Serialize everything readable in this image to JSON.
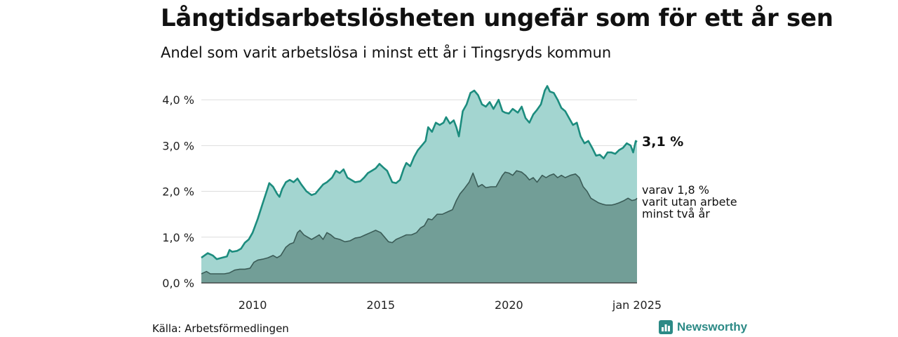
{
  "header": {
    "title": "Långtidsarbetslösheten ungefär som för ett år sen",
    "subtitle": "Andel som varit arbetslösa i minst ett år i Tingsryds kommun"
  },
  "footer": {
    "source": "Källa: Arbetsförmedlingen",
    "brand": "Newsworthy"
  },
  "colors": {
    "long_fill": "#a3d5d0",
    "long_line": "#1c8c7e",
    "two_year_fill": "#729e97",
    "two_year_line": "#3b5c57",
    "grid": "#dddddd",
    "brand": "#2c8a86"
  },
  "chart_data": {
    "type": "area",
    "title": "Långtidsarbetslösheten ungefär som för ett år sen",
    "subtitle": "Andel som varit arbetslösa i minst ett år i Tingsryds kommun",
    "x_ticks": [
      "2010",
      "2015",
      "2020",
      "jan 2025"
    ],
    "x_tick_values": [
      2010,
      2015,
      2020,
      2025
    ],
    "y_ticks": [
      "0,0 %",
      "1,0 %",
      "2,0 %",
      "3,0 %",
      "4,0 %"
    ],
    "ylim": [
      0,
      4.4
    ],
    "xlim": [
      2008.0,
      2025.0
    ],
    "grid": true,
    "series": [
      {
        "end_label": "3,1 %",
        "points": [
          [
            2008.0,
            0.55
          ],
          [
            2008.25,
            0.65
          ],
          [
            2008.45,
            0.6
          ],
          [
            2008.6,
            0.52
          ],
          [
            2008.8,
            0.55
          ],
          [
            2009.0,
            0.58
          ],
          [
            2009.1,
            0.72
          ],
          [
            2009.2,
            0.68
          ],
          [
            2009.4,
            0.7
          ],
          [
            2009.55,
            0.75
          ],
          [
            2009.7,
            0.88
          ],
          [
            2009.85,
            0.95
          ],
          [
            2010.0,
            1.1
          ],
          [
            2010.2,
            1.4
          ],
          [
            2010.4,
            1.75
          ],
          [
            2010.55,
            2.0
          ],
          [
            2010.65,
            2.18
          ],
          [
            2010.8,
            2.1
          ],
          [
            2010.95,
            1.95
          ],
          [
            2011.05,
            1.88
          ],
          [
            2011.15,
            2.05
          ],
          [
            2011.3,
            2.2
          ],
          [
            2011.45,
            2.25
          ],
          [
            2011.6,
            2.2
          ],
          [
            2011.75,
            2.28
          ],
          [
            2011.9,
            2.15
          ],
          [
            2012.1,
            2.0
          ],
          [
            2012.3,
            1.92
          ],
          [
            2012.45,
            1.95
          ],
          [
            2012.6,
            2.05
          ],
          [
            2012.75,
            2.15
          ],
          [
            2012.9,
            2.2
          ],
          [
            2013.1,
            2.3
          ],
          [
            2013.25,
            2.45
          ],
          [
            2013.4,
            2.4
          ],
          [
            2013.55,
            2.48
          ],
          [
            2013.7,
            2.3
          ],
          [
            2013.85,
            2.25
          ],
          [
            2014.0,
            2.2
          ],
          [
            2014.2,
            2.22
          ],
          [
            2014.35,
            2.3
          ],
          [
            2014.5,
            2.4
          ],
          [
            2014.65,
            2.45
          ],
          [
            2014.8,
            2.5
          ],
          [
            2014.95,
            2.6
          ],
          [
            2015.1,
            2.52
          ],
          [
            2015.25,
            2.45
          ],
          [
            2015.45,
            2.2
          ],
          [
            2015.6,
            2.18
          ],
          [
            2015.75,
            2.25
          ],
          [
            2015.9,
            2.5
          ],
          [
            2016.0,
            2.62
          ],
          [
            2016.15,
            2.55
          ],
          [
            2016.3,
            2.75
          ],
          [
            2016.45,
            2.9
          ],
          [
            2016.6,
            3.0
          ],
          [
            2016.75,
            3.1
          ],
          [
            2016.85,
            3.4
          ],
          [
            2017.0,
            3.3
          ],
          [
            2017.15,
            3.5
          ],
          [
            2017.3,
            3.45
          ],
          [
            2017.45,
            3.5
          ],
          [
            2017.55,
            3.62
          ],
          [
            2017.7,
            3.48
          ],
          [
            2017.85,
            3.55
          ],
          [
            2017.95,
            3.4
          ],
          [
            2018.05,
            3.2
          ],
          [
            2018.2,
            3.75
          ],
          [
            2018.35,
            3.9
          ],
          [
            2018.5,
            4.15
          ],
          [
            2018.65,
            4.2
          ],
          [
            2018.8,
            4.1
          ],
          [
            2018.95,
            3.9
          ],
          [
            2019.1,
            3.85
          ],
          [
            2019.25,
            3.95
          ],
          [
            2019.4,
            3.8
          ],
          [
            2019.5,
            3.9
          ],
          [
            2019.6,
            4.0
          ],
          [
            2019.75,
            3.75
          ],
          [
            2019.85,
            3.72
          ],
          [
            2020.0,
            3.7
          ],
          [
            2020.15,
            3.8
          ],
          [
            2020.35,
            3.72
          ],
          [
            2020.5,
            3.85
          ],
          [
            2020.65,
            3.6
          ],
          [
            2020.8,
            3.5
          ],
          [
            2020.95,
            3.68
          ],
          [
            2021.1,
            3.78
          ],
          [
            2021.25,
            3.9
          ],
          [
            2021.4,
            4.2
          ],
          [
            2021.5,
            4.3
          ],
          [
            2021.6,
            4.18
          ],
          [
            2021.75,
            4.15
          ],
          [
            2021.9,
            4.0
          ],
          [
            2022.05,
            3.82
          ],
          [
            2022.2,
            3.75
          ],
          [
            2022.35,
            3.6
          ],
          [
            2022.5,
            3.45
          ],
          [
            2022.65,
            3.5
          ],
          [
            2022.8,
            3.2
          ],
          [
            2022.95,
            3.05
          ],
          [
            2023.1,
            3.1
          ],
          [
            2023.25,
            2.95
          ],
          [
            2023.4,
            2.78
          ],
          [
            2023.55,
            2.8
          ],
          [
            2023.7,
            2.72
          ],
          [
            2023.85,
            2.85
          ],
          [
            2024.0,
            2.85
          ],
          [
            2024.15,
            2.82
          ],
          [
            2024.3,
            2.9
          ],
          [
            2024.45,
            2.95
          ],
          [
            2024.6,
            3.05
          ],
          [
            2024.75,
            3.0
          ],
          [
            2024.85,
            2.85
          ],
          [
            2024.95,
            3.1
          ],
          [
            2025.0,
            3.08
          ]
        ]
      },
      {
        "end_label": [
          "varav 1,8 %",
          "varit utan arbete",
          "minst två år"
        ],
        "points": [
          [
            2008.0,
            0.2
          ],
          [
            2008.2,
            0.25
          ],
          [
            2008.35,
            0.2
          ],
          [
            2008.6,
            0.2
          ],
          [
            2008.9,
            0.2
          ],
          [
            2009.1,
            0.22
          ],
          [
            2009.3,
            0.28
          ],
          [
            2009.5,
            0.3
          ],
          [
            2009.7,
            0.3
          ],
          [
            2009.9,
            0.32
          ],
          [
            2010.05,
            0.45
          ],
          [
            2010.2,
            0.5
          ],
          [
            2010.4,
            0.52
          ],
          [
            2010.6,
            0.55
          ],
          [
            2010.8,
            0.6
          ],
          [
            2010.95,
            0.55
          ],
          [
            2011.1,
            0.6
          ],
          [
            2011.3,
            0.78
          ],
          [
            2011.45,
            0.85
          ],
          [
            2011.6,
            0.88
          ],
          [
            2011.75,
            1.1
          ],
          [
            2011.85,
            1.15
          ],
          [
            2012.0,
            1.05
          ],
          [
            2012.15,
            1.0
          ],
          [
            2012.3,
            0.95
          ],
          [
            2012.45,
            1.0
          ],
          [
            2012.6,
            1.05
          ],
          [
            2012.75,
            0.95
          ],
          [
            2012.9,
            1.1
          ],
          [
            2013.05,
            1.05
          ],
          [
            2013.2,
            0.98
          ],
          [
            2013.4,
            0.95
          ],
          [
            2013.6,
            0.9
          ],
          [
            2013.8,
            0.92
          ],
          [
            2014.0,
            0.98
          ],
          [
            2014.2,
            1.0
          ],
          [
            2014.4,
            1.05
          ],
          [
            2014.6,
            1.1
          ],
          [
            2014.8,
            1.15
          ],
          [
            2015.0,
            1.1
          ],
          [
            2015.15,
            1.0
          ],
          [
            2015.3,
            0.9
          ],
          [
            2015.45,
            0.88
          ],
          [
            2015.6,
            0.95
          ],
          [
            2015.8,
            1.0
          ],
          [
            2016.0,
            1.05
          ],
          [
            2016.2,
            1.05
          ],
          [
            2016.4,
            1.1
          ],
          [
            2016.55,
            1.2
          ],
          [
            2016.7,
            1.25
          ],
          [
            2016.85,
            1.4
          ],
          [
            2017.0,
            1.38
          ],
          [
            2017.2,
            1.5
          ],
          [
            2017.4,
            1.5
          ],
          [
            2017.6,
            1.55
          ],
          [
            2017.8,
            1.6
          ],
          [
            2017.95,
            1.8
          ],
          [
            2018.1,
            1.95
          ],
          [
            2018.25,
            2.05
          ],
          [
            2018.45,
            2.2
          ],
          [
            2018.6,
            2.4
          ],
          [
            2018.8,
            2.1
          ],
          [
            2018.95,
            2.15
          ],
          [
            2019.1,
            2.08
          ],
          [
            2019.3,
            2.1
          ],
          [
            2019.5,
            2.1
          ],
          [
            2019.6,
            2.2
          ],
          [
            2019.75,
            2.35
          ],
          [
            2019.85,
            2.42
          ],
          [
            2020.0,
            2.4
          ],
          [
            2020.15,
            2.35
          ],
          [
            2020.3,
            2.45
          ],
          [
            2020.5,
            2.42
          ],
          [
            2020.65,
            2.35
          ],
          [
            2020.8,
            2.25
          ],
          [
            2020.95,
            2.3
          ],
          [
            2021.1,
            2.2
          ],
          [
            2021.3,
            2.35
          ],
          [
            2021.45,
            2.3
          ],
          [
            2021.6,
            2.35
          ],
          [
            2021.75,
            2.38
          ],
          [
            2021.9,
            2.3
          ],
          [
            2022.05,
            2.35
          ],
          [
            2022.2,
            2.3
          ],
          [
            2022.4,
            2.35
          ],
          [
            2022.6,
            2.38
          ],
          [
            2022.75,
            2.3
          ],
          [
            2022.9,
            2.1
          ],
          [
            2023.05,
            2.0
          ],
          [
            2023.2,
            1.85
          ],
          [
            2023.35,
            1.8
          ],
          [
            2023.5,
            1.75
          ],
          [
            2023.65,
            1.72
          ],
          [
            2023.8,
            1.7
          ],
          [
            2024.0,
            1.7
          ],
          [
            2024.15,
            1.72
          ],
          [
            2024.3,
            1.75
          ],
          [
            2024.5,
            1.8
          ],
          [
            2024.65,
            1.85
          ],
          [
            2024.8,
            1.8
          ],
          [
            2024.95,
            1.82
          ],
          [
            2025.0,
            1.85
          ]
        ]
      }
    ]
  }
}
